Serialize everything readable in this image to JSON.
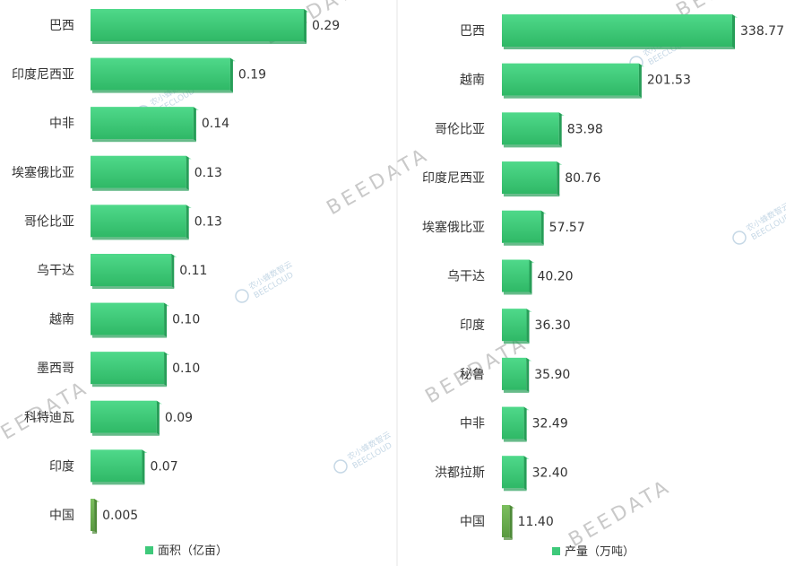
{
  "chart_data": [
    {
      "type": "bar",
      "orientation": "horizontal",
      "categories": [
        "巴西",
        "印度尼西亚",
        "中非",
        "埃塞俄比亚",
        "哥伦比亚",
        "乌干达",
        "越南",
        "墨西哥",
        "科特迪瓦",
        "印度",
        "中国"
      ],
      "values": [
        0.29,
        0.19,
        0.14,
        0.13,
        0.13,
        0.11,
        0.1,
        0.1,
        0.09,
        0.07,
        0.005
      ],
      "value_labels": [
        "0.29",
        "0.19",
        "0.14",
        "0.13",
        "0.13",
        "0.11",
        "0.10",
        "0.10",
        "0.09",
        "0.07",
        "0.005"
      ],
      "series": [
        {
          "name": "面积（亿亩）"
        }
      ],
      "xlim": [
        0,
        0.3
      ],
      "grid": false,
      "legend_position": "bottom",
      "bar_color": "#3ec97a",
      "highlight_color": "#6aa84f",
      "highlight_category": "中国"
    },
    {
      "type": "bar",
      "orientation": "horizontal",
      "categories": [
        "巴西",
        "越南",
        "哥伦比亚",
        "印度尼西亚",
        "埃塞俄比亚",
        "乌干达",
        "印度",
        "秘鲁",
        "中非",
        "洪都拉斯",
        "中国"
      ],
      "values": [
        338.77,
        201.53,
        83.98,
        80.76,
        57.57,
        40.2,
        36.3,
        35.9,
        32.49,
        32.4,
        11.4
      ],
      "value_labels": [
        "338.77",
        "201.53",
        "83.98",
        "80.76",
        "57.57",
        "40.20",
        "36.30",
        "35.90",
        "32.49",
        "32.40",
        "11.40"
      ],
      "series": [
        {
          "name": "产量（万吨）"
        }
      ],
      "xlim": [
        0,
        350
      ],
      "grid": false,
      "legend_position": "bottom",
      "bar_color": "#3ec97a",
      "highlight_color": "#6aa84f",
      "highlight_category": "中国"
    }
  ],
  "watermark": {
    "text": "BEEDATA",
    "logo_text": "农小蜂数智云",
    "logo_sub": "BEECLOUD",
    "color": "#c9c9c9"
  },
  "colors": {
    "divider": "#e6e6e6",
    "text": "#333333"
  }
}
